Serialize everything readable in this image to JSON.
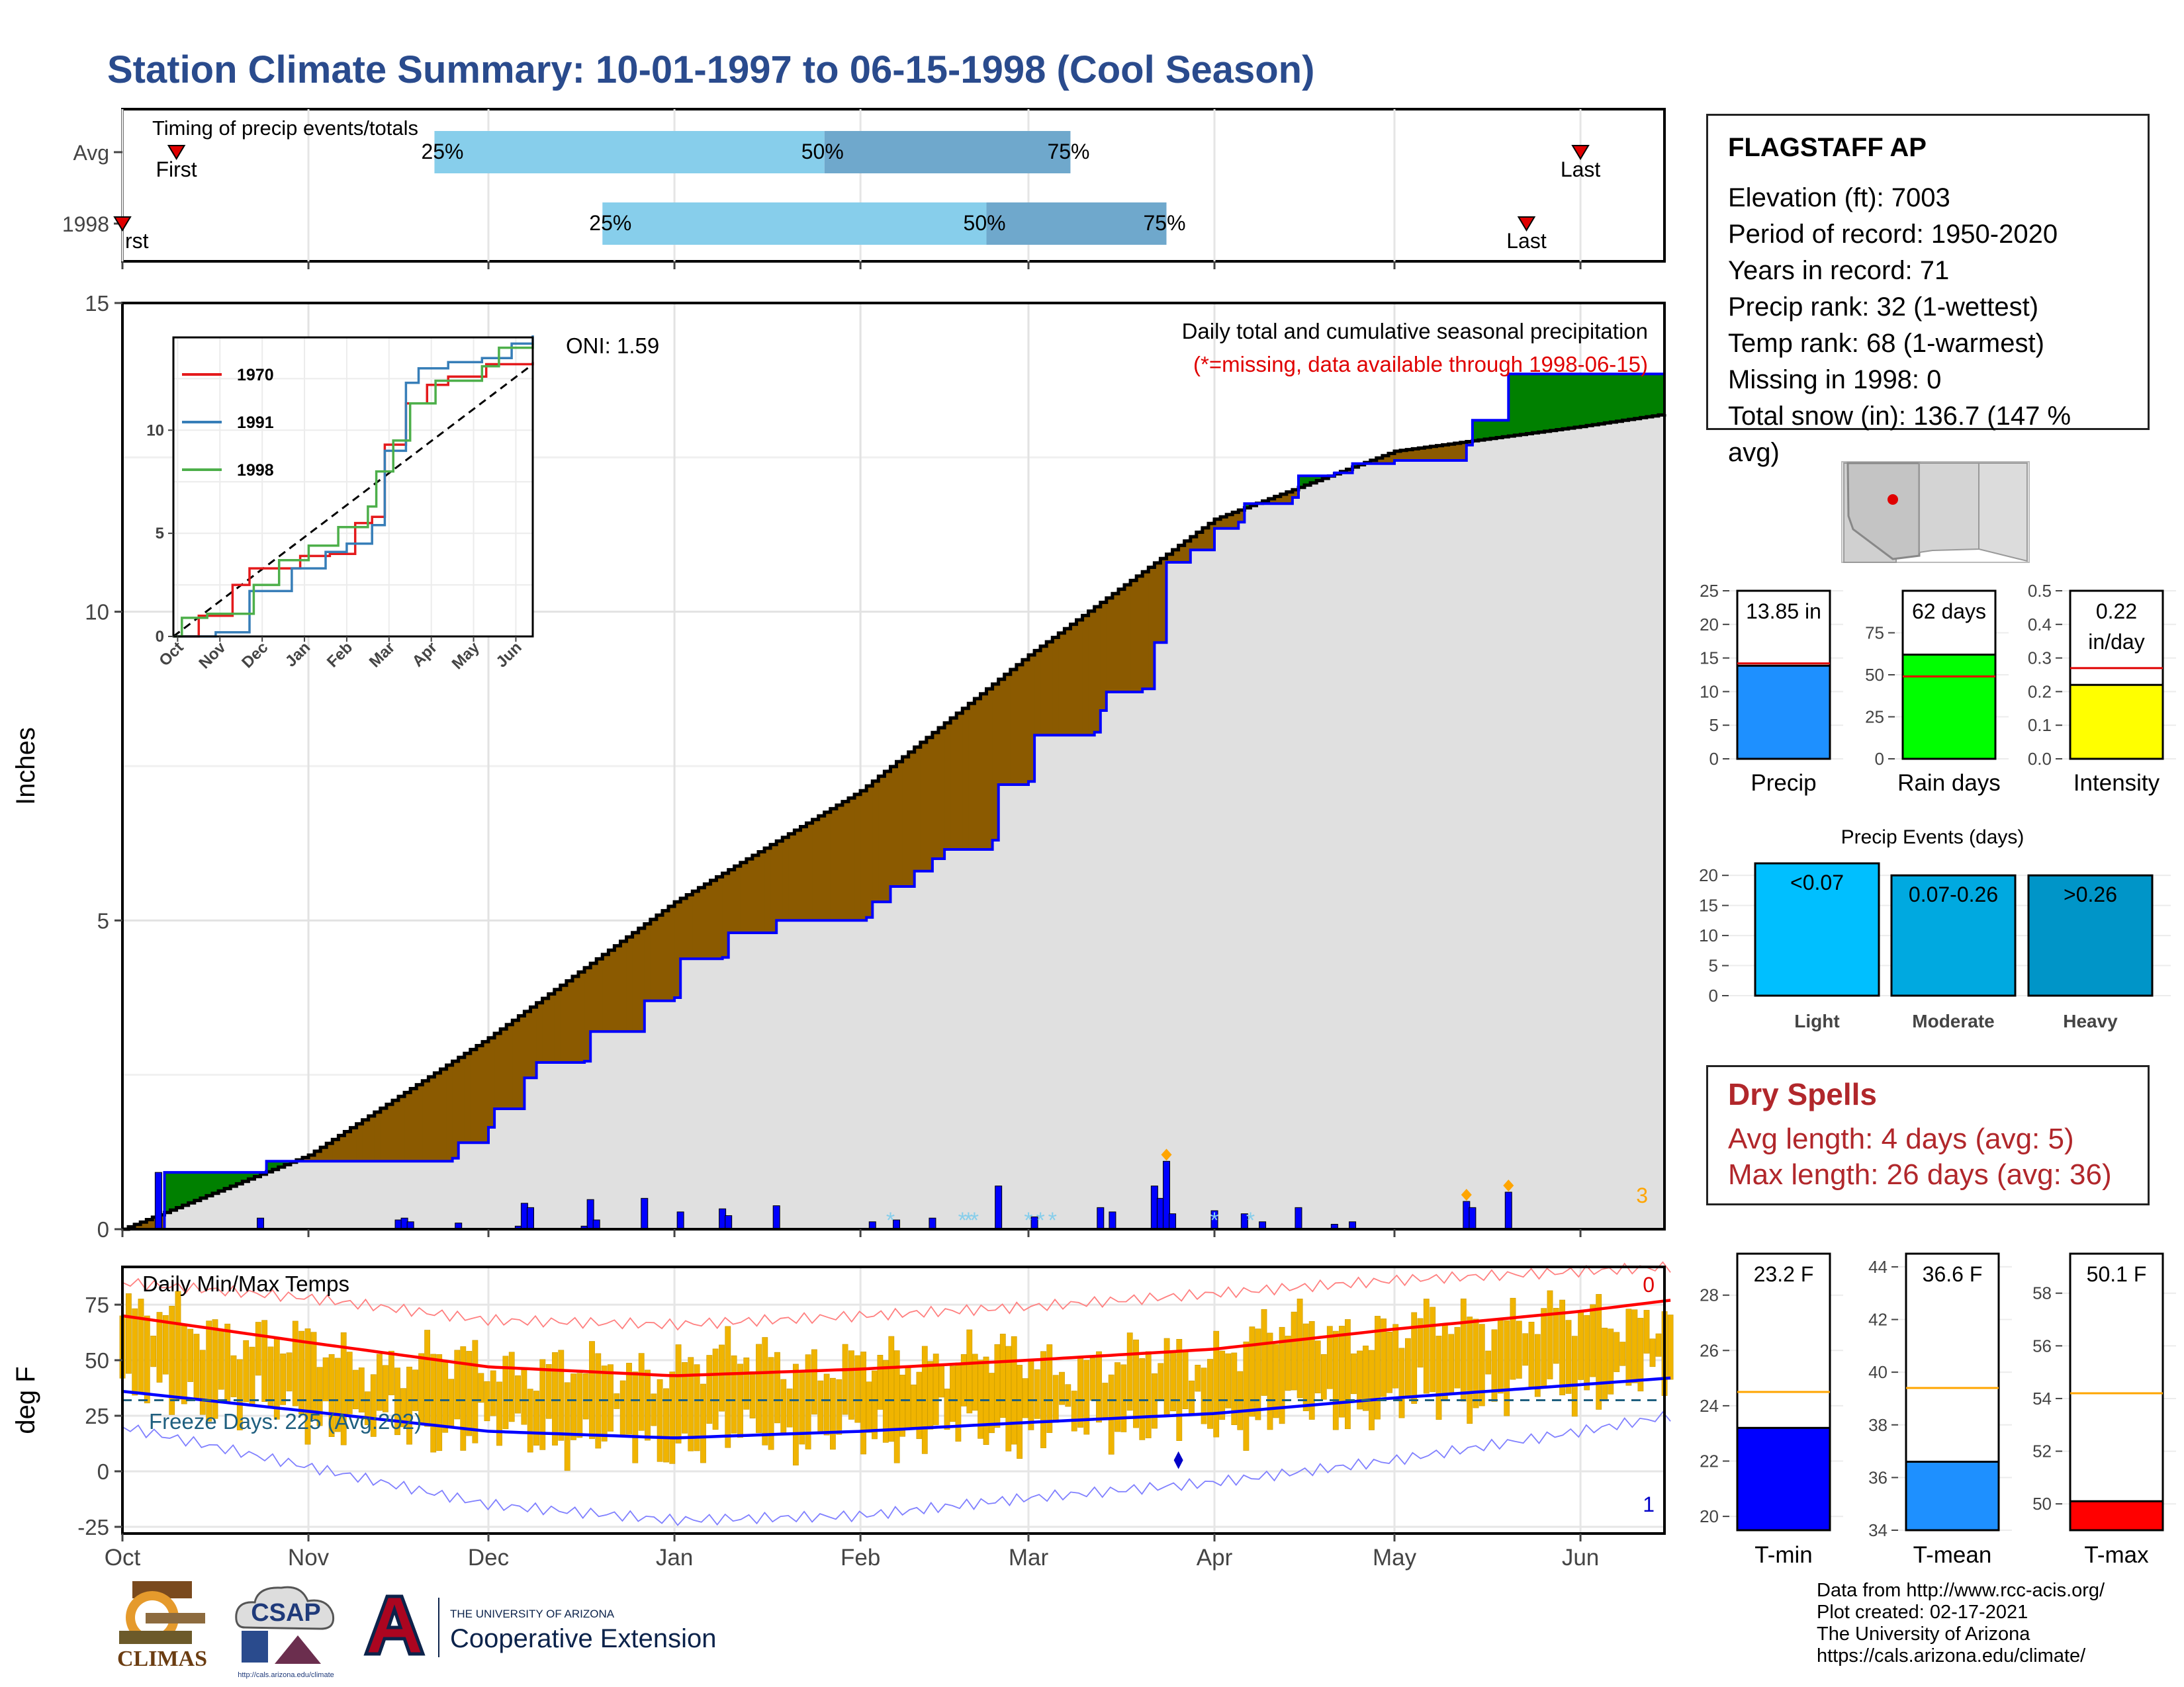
{
  "title": "Station Climate Summary: 10-01-1997 to 06-15-1998 (Cool Season)",
  "timing": {
    "title": "Timing of precip events/totals",
    "rows": [
      {
        "label": "Avg",
        "q25": "1997-11-22",
        "q50": "1998-01-26",
        "q75": "1998-03-08",
        "first": "1997-10-10",
        "last": "1998-06-01",
        "first_text": "First",
        "last_text": "Last",
        "q25_text": "25%",
        "q50_text": "50%",
        "q75_text": "75%"
      },
      {
        "label": "1998",
        "q25": "1997-12-20",
        "q50": "1998-02-22",
        "q75": "1998-03-24",
        "first": "1997-10-01",
        "last": "1998-05-23",
        "first_text": "rst",
        "last_text": "Last",
        "q25_text": "25%",
        "q50_text": "50%",
        "q75_text": "75%"
      }
    ]
  },
  "chart_data": [
    {
      "type": "area",
      "name": "main-precip",
      "title": "Daily total and cumulative seasonal precipitation",
      "subtitle": "(*=missing, data available through 1998-06-15)",
      "ylabel": "Inches",
      "ylim": [
        0,
        15
      ],
      "yticks": [
        0,
        5,
        10,
        15
      ],
      "oni": "ONI: 1.59",
      "count_label": "3",
      "x_start": "1997-10-01",
      "x_end": "1998-06-15",
      "xticks": [
        "Oct",
        "Nov",
        "Dec",
        "Jan",
        "Feb",
        "Mar",
        "Apr",
        "May",
        "Jun"
      ],
      "avg_cumulative": [
        [
          "1997-10-01",
          0
        ],
        [
          "1997-11-01",
          1.2
        ],
        [
          "1997-12-01",
          3.1
        ],
        [
          "1998-01-01",
          5.3
        ],
        [
          "1998-02-01",
          7.1
        ],
        [
          "1998-03-01",
          9.3
        ],
        [
          "1998-04-01",
          11.5
        ],
        [
          "1998-05-01",
          12.6
        ],
        [
          "1998-06-01",
          13.0
        ],
        [
          "1998-06-15",
          13.2
        ]
      ],
      "observed_cumulative": [
        [
          "1997-10-01",
          0
        ],
        [
          "1997-10-07",
          0
        ],
        [
          "1997-10-08",
          0.92
        ],
        [
          "1997-10-24",
          0.92
        ],
        [
          "1997-10-25",
          1.1
        ],
        [
          "1997-11-25",
          1.15
        ],
        [
          "1997-11-26",
          1.4
        ],
        [
          "1997-12-01",
          1.65
        ],
        [
          "1997-12-02",
          1.95
        ],
        [
          "1997-12-06",
          1.95
        ],
        [
          "1997-12-07",
          2.45
        ],
        [
          "1997-12-09",
          2.7
        ],
        [
          "1997-12-17",
          2.72
        ],
        [
          "1997-12-18",
          3.2
        ],
        [
          "1997-12-27",
          3.7
        ],
        [
          "1998-01-01",
          3.75
        ],
        [
          "1998-01-02",
          4.38
        ],
        [
          "1998-01-09",
          4.4
        ],
        [
          "1998-01-10",
          4.8
        ],
        [
          "1998-01-17",
          4.8
        ],
        [
          "1998-01-18",
          5.0
        ],
        [
          "1998-02-02",
          5.05
        ],
        [
          "1998-02-03",
          5.3
        ],
        [
          "1998-02-06",
          5.55
        ],
        [
          "1998-02-10",
          5.8
        ],
        [
          "1998-02-13",
          6.0
        ],
        [
          "1998-02-15",
          6.15
        ],
        [
          "1998-02-23",
          6.3
        ],
        [
          "1998-02-24",
          7.2
        ],
        [
          "1998-03-01",
          7.25
        ],
        [
          "1998-03-02",
          8.0
        ],
        [
          "1998-03-12",
          8.05
        ],
        [
          "1998-03-13",
          8.4
        ],
        [
          "1998-03-14",
          8.7
        ],
        [
          "1998-03-20",
          8.75
        ],
        [
          "1998-03-22",
          9.5
        ],
        [
          "1998-03-24",
          10.8
        ],
        [
          "1998-03-28",
          11.0
        ],
        [
          "1998-04-01",
          11.35
        ],
        [
          "1998-04-05",
          11.45
        ],
        [
          "1998-04-06",
          11.75
        ],
        [
          "1998-04-14",
          11.85
        ],
        [
          "1998-04-15",
          12.2
        ],
        [
          "1998-04-21",
          12.25
        ],
        [
          "1998-04-24",
          12.4
        ],
        [
          "1998-05-01",
          12.45
        ],
        [
          "1998-05-07",
          12.45
        ],
        [
          "1998-05-13",
          12.7
        ],
        [
          "1998-05-14",
          13.1
        ],
        [
          "1998-05-19",
          13.1
        ],
        [
          "1998-05-20",
          13.85
        ],
        [
          "1998-06-15",
          13.85
        ]
      ],
      "daily_bars": [
        [
          "1997-10-07",
          0.92
        ],
        [
          "1997-10-24",
          0.18
        ],
        [
          "1997-11-16",
          0.15
        ],
        [
          "1997-11-17",
          0.18
        ],
        [
          "1997-11-18",
          0.12
        ],
        [
          "1997-11-26",
          0.1
        ],
        [
          "1997-12-06",
          0.05
        ],
        [
          "1997-12-07",
          0.42
        ],
        [
          "1997-12-08",
          0.35
        ],
        [
          "1997-12-17",
          0.05
        ],
        [
          "1997-12-18",
          0.48
        ],
        [
          "1997-12-19",
          0.15
        ],
        [
          "1997-12-27",
          0.5
        ],
        [
          "1998-01-02",
          0.28
        ],
        [
          "1998-01-09",
          0.33
        ],
        [
          "1998-01-10",
          0.22
        ],
        [
          "1998-01-18",
          0.38
        ],
        [
          "1998-02-03",
          0.12
        ],
        [
          "1998-02-07",
          0.15
        ],
        [
          "1998-02-13",
          0.18
        ],
        [
          "1998-02-24",
          0.7
        ],
        [
          "1998-03-02",
          0.2
        ],
        [
          "1998-03-13",
          0.35
        ],
        [
          "1998-03-15",
          0.28
        ],
        [
          "1998-03-22",
          0.7
        ],
        [
          "1998-03-23",
          0.5
        ],
        [
          "1998-03-24",
          1.1
        ],
        [
          "1998-03-25",
          0.25
        ],
        [
          "1998-04-01",
          0.3
        ],
        [
          "1998-04-06",
          0.25
        ],
        [
          "1998-04-09",
          0.12
        ],
        [
          "1998-04-15",
          0.35
        ],
        [
          "1998-04-21",
          0.08
        ],
        [
          "1998-04-24",
          0.12
        ],
        [
          "1998-05-13",
          0.45
        ],
        [
          "1998-05-14",
          0.35
        ],
        [
          "1998-05-20",
          0.6
        ]
      ],
      "missing_marks": [
        "1998-02-06",
        "1998-02-18",
        "1998-02-19",
        "1998-02-20",
        "1998-03-01",
        "1998-03-03",
        "1998-03-05",
        "1998-04-01",
        "1998-04-07"
      ],
      "markers": [
        "1998-03-24",
        "1998-05-13",
        "1998-05-20"
      ],
      "colors": {
        "surplus": "#008000",
        "deficit": "#8b5a00",
        "observed": "#0000ff",
        "avg_area": "#e0e0e0",
        "marker": "#ffa500"
      }
    },
    {
      "type": "line",
      "name": "oni-inset",
      "xticks": [
        "Oct",
        "Nov",
        "Dec",
        "Jan",
        "Feb",
        "Mar",
        "Apr",
        "May",
        "Jun"
      ],
      "yticks": [
        0,
        5,
        10
      ],
      "ylim": [
        0,
        14.5
      ],
      "series": [
        {
          "name": "1970",
          "color": "#e41a1c",
          "values": [
            [
              0,
              0
            ],
            [
              0.6,
              1.0
            ],
            [
              1.4,
              2.5
            ],
            [
              1.8,
              3.3
            ],
            [
              2.6,
              3.3
            ],
            [
              3.0,
              3.9
            ],
            [
              3.7,
              4.0
            ],
            [
              4.3,
              5.5
            ],
            [
              4.7,
              5.8
            ],
            [
              5.0,
              9.3
            ],
            [
              5.5,
              11.3
            ],
            [
              6.0,
              12.2
            ],
            [
              6.5,
              12.6
            ],
            [
              7.4,
              13.2
            ],
            [
              8.5,
              13.3
            ]
          ]
        },
        {
          "name": "1991",
          "color": "#377eb8",
          "values": [
            [
              0,
              0
            ],
            [
              1.0,
              0.2
            ],
            [
              1.8,
              2.2
            ],
            [
              2.8,
              3.3
            ],
            [
              3.6,
              4.1
            ],
            [
              4.1,
              4.5
            ],
            [
              4.7,
              5.4
            ],
            [
              5.0,
              9.0
            ],
            [
              5.5,
              12.3
            ],
            [
              5.8,
              13.0
            ],
            [
              6.5,
              13.3
            ],
            [
              7.3,
              13.5
            ],
            [
              8.0,
              14.2
            ],
            [
              8.5,
              14.6
            ]
          ]
        },
        {
          "name": "1998",
          "color": "#4daf4a",
          "values": [
            [
              0,
              0
            ],
            [
              0.2,
              0.9
            ],
            [
              0.8,
              1.1
            ],
            [
              1.9,
              2.5
            ],
            [
              2.5,
              3.7
            ],
            [
              3.2,
              4.4
            ],
            [
              3.9,
              5.3
            ],
            [
              4.6,
              6.3
            ],
            [
              4.8,
              8.0
            ],
            [
              5.2,
              9.5
            ],
            [
              5.6,
              11.3
            ],
            [
              6.2,
              12.4
            ],
            [
              7.3,
              13.1
            ],
            [
              7.7,
              14.0
            ],
            [
              8.5,
              14.2
            ]
          ]
        }
      ],
      "avg_line": [
        [
          0,
          0
        ],
        [
          8.5,
          13.2
        ]
      ]
    },
    {
      "type": "bar",
      "name": "temps",
      "title": "Daily Min/Max Temps",
      "ylabel": "deg F",
      "ylim": [
        -28,
        92
      ],
      "yticks": [
        -25,
        0,
        25,
        50,
        75
      ],
      "xticks": [
        "Oct",
        "Nov",
        "Dec",
        "Jan",
        "Feb",
        "Mar",
        "Apr",
        "May",
        "Jun"
      ],
      "freeze_label": "Freeze Days: 225 (Avg:202)",
      "freeze_line": 32,
      "count_high": "0",
      "count_low": "1",
      "avg_max": [
        [
          0,
          70
        ],
        [
          1,
          58
        ],
        [
          2,
          47
        ],
        [
          3,
          43
        ],
        [
          4,
          46
        ],
        [
          5,
          50
        ],
        [
          6,
          55
        ],
        [
          7,
          64
        ],
        [
          8,
          72
        ],
        [
          8.5,
          77
        ]
      ],
      "avg_min": [
        [
          0,
          36
        ],
        [
          1,
          27
        ],
        [
          2,
          18
        ],
        [
          3,
          15
        ],
        [
          4,
          18
        ],
        [
          5,
          22
        ],
        [
          6,
          26
        ],
        [
          7,
          33
        ],
        [
          8,
          39
        ],
        [
          8.5,
          42
        ]
      ],
      "record_max": [
        [
          0,
          85
        ],
        [
          1,
          78
        ],
        [
          2,
          68
        ],
        [
          3,
          66
        ],
        [
          4,
          70
        ],
        [
          5,
          74
        ],
        [
          6,
          80
        ],
        [
          7,
          86
        ],
        [
          8,
          90
        ],
        [
          8.5,
          92
        ]
      ],
      "record_min": [
        [
          0,
          20
        ],
        [
          1,
          2
        ],
        [
          2,
          -15
        ],
        [
          3,
          -22
        ],
        [
          4,
          -20
        ],
        [
          5,
          -12
        ],
        [
          6,
          -5
        ],
        [
          7,
          5
        ],
        [
          8,
          18
        ],
        [
          8.5,
          25
        ]
      ],
      "daily_max_approx": [
        [
          0,
          70
        ],
        [
          0.5,
          65
        ],
        [
          1,
          55
        ],
        [
          1.5,
          48
        ],
        [
          2,
          50
        ],
        [
          2.5,
          44
        ],
        [
          3,
          48
        ],
        [
          3.5,
          52
        ],
        [
          4,
          46
        ],
        [
          4.5,
          52
        ],
        [
          5,
          50
        ],
        [
          5.5,
          48
        ],
        [
          6,
          55
        ],
        [
          6.5,
          65
        ],
        [
          7,
          62
        ],
        [
          7.5,
          70
        ],
        [
          8,
          68
        ],
        [
          8.5,
          72
        ]
      ],
      "daily_min_approx": [
        [
          0,
          36
        ],
        [
          0.5,
          32
        ],
        [
          1,
          25
        ],
        [
          1.5,
          20
        ],
        [
          2,
          18
        ],
        [
          2.5,
          15
        ],
        [
          3,
          12
        ],
        [
          3.5,
          18
        ],
        [
          4,
          15
        ],
        [
          4.5,
          20
        ],
        [
          5,
          18
        ],
        [
          5.5,
          22
        ],
        [
          6,
          22
        ],
        [
          6.5,
          28
        ],
        [
          7,
          30
        ],
        [
          7.5,
          35
        ],
        [
          8,
          38
        ],
        [
          8.5,
          42
        ]
      ],
      "colors": {
        "bars": "#f0b400",
        "avg_max": "#ff0000",
        "avg_min": "#0000ff",
        "freeze": "#1f5f7f"
      }
    },
    {
      "type": "bar",
      "name": "precip-summary",
      "panels": [
        {
          "label": "Precip",
          "value": 13.85,
          "value_text": "13.85 in",
          "avg": 14.2,
          "ylim": [
            0,
            25
          ],
          "yticks": [
            0,
            5,
            10,
            15,
            20,
            25
          ],
          "color": "#1e90ff"
        },
        {
          "label": "Rain days",
          "value": 62,
          "value_text": "62 days",
          "avg": 49,
          "ylim": [
            0,
            100
          ],
          "yticks": [
            0,
            25,
            50,
            75
          ],
          "color": "#00ff00"
        },
        {
          "label": "Intensity",
          "value": 0.22,
          "value_text": "0.22 in/day",
          "avg": 0.27,
          "ylim": [
            0,
            0.5
          ],
          "yticks": [
            0.0,
            0.1,
            0.2,
            0.3,
            0.4,
            0.5
          ],
          "color": "#ffff00"
        }
      ]
    },
    {
      "type": "bar",
      "name": "precip-events",
      "title": "Precip Events (days)",
      "yticks": [
        0,
        5,
        10,
        15,
        20
      ],
      "ylim": [
        0,
        22
      ],
      "categories": [
        "Light",
        "Moderate",
        "Heavy"
      ],
      "values": [
        22,
        20,
        20
      ],
      "bar_labels": [
        "<0.07",
        "0.07-0.26",
        ">0.26"
      ],
      "colors": [
        "#00bfff",
        "#00a9e0",
        "#0095c8"
      ]
    },
    {
      "type": "bar",
      "name": "temp-summary",
      "panels": [
        {
          "label": "T-min",
          "value": 23.2,
          "value_text": "23.2 F",
          "avg": 24.5,
          "ylim": [
            19.5,
            29.5
          ],
          "yticks": [
            20,
            22,
            24,
            26,
            28
          ],
          "color": "#0000ff"
        },
        {
          "label": "T-mean",
          "value": 36.6,
          "value_text": "36.6 F",
          "avg": 39.4,
          "ylim": [
            34,
            44.5
          ],
          "yticks": [
            34,
            36,
            38,
            40,
            42,
            44
          ],
          "color": "#1e90ff"
        },
        {
          "label": "T-max",
          "value": 50.1,
          "value_text": "50.1 F",
          "avg": 54.2,
          "ylim": [
            49,
            59.5
          ],
          "yticks": [
            50,
            52,
            54,
            56,
            58
          ],
          "color": "#ff0000"
        }
      ]
    }
  ],
  "info": {
    "station": "FLAGSTAFF AP",
    "lines": [
      "Elevation (ft): 7003",
      "Period of record: 1950-2020",
      "Years in record: 71",
      "Precip rank: 32 (1-wettest)",
      "Temp rank: 68 (1-warmest)",
      "Missing in 1998: 0",
      "Total snow (in): 136.7 (147 % avg)"
    ]
  },
  "dry_spells": {
    "title": "Dry Spells",
    "avg": "Avg length: 4 days (avg: 5)",
    "max": "Max length: 26 days (avg: 36)"
  },
  "footer": {
    "lines": [
      "Data from http://www.rcc-acis.org/",
      "Plot created: 02-17-2021",
      "The University of Arizona",
      "https://cals.arizona.edu/climate/"
    ]
  },
  "logos": {
    "climas": "CLIMAS",
    "csap": "CSAP",
    "csap_url": "http://cals.arizona.edu/climate",
    "ua_small": "THE UNIVERSITY OF ARIZONA",
    "ua_big": "Cooperative Extension"
  }
}
